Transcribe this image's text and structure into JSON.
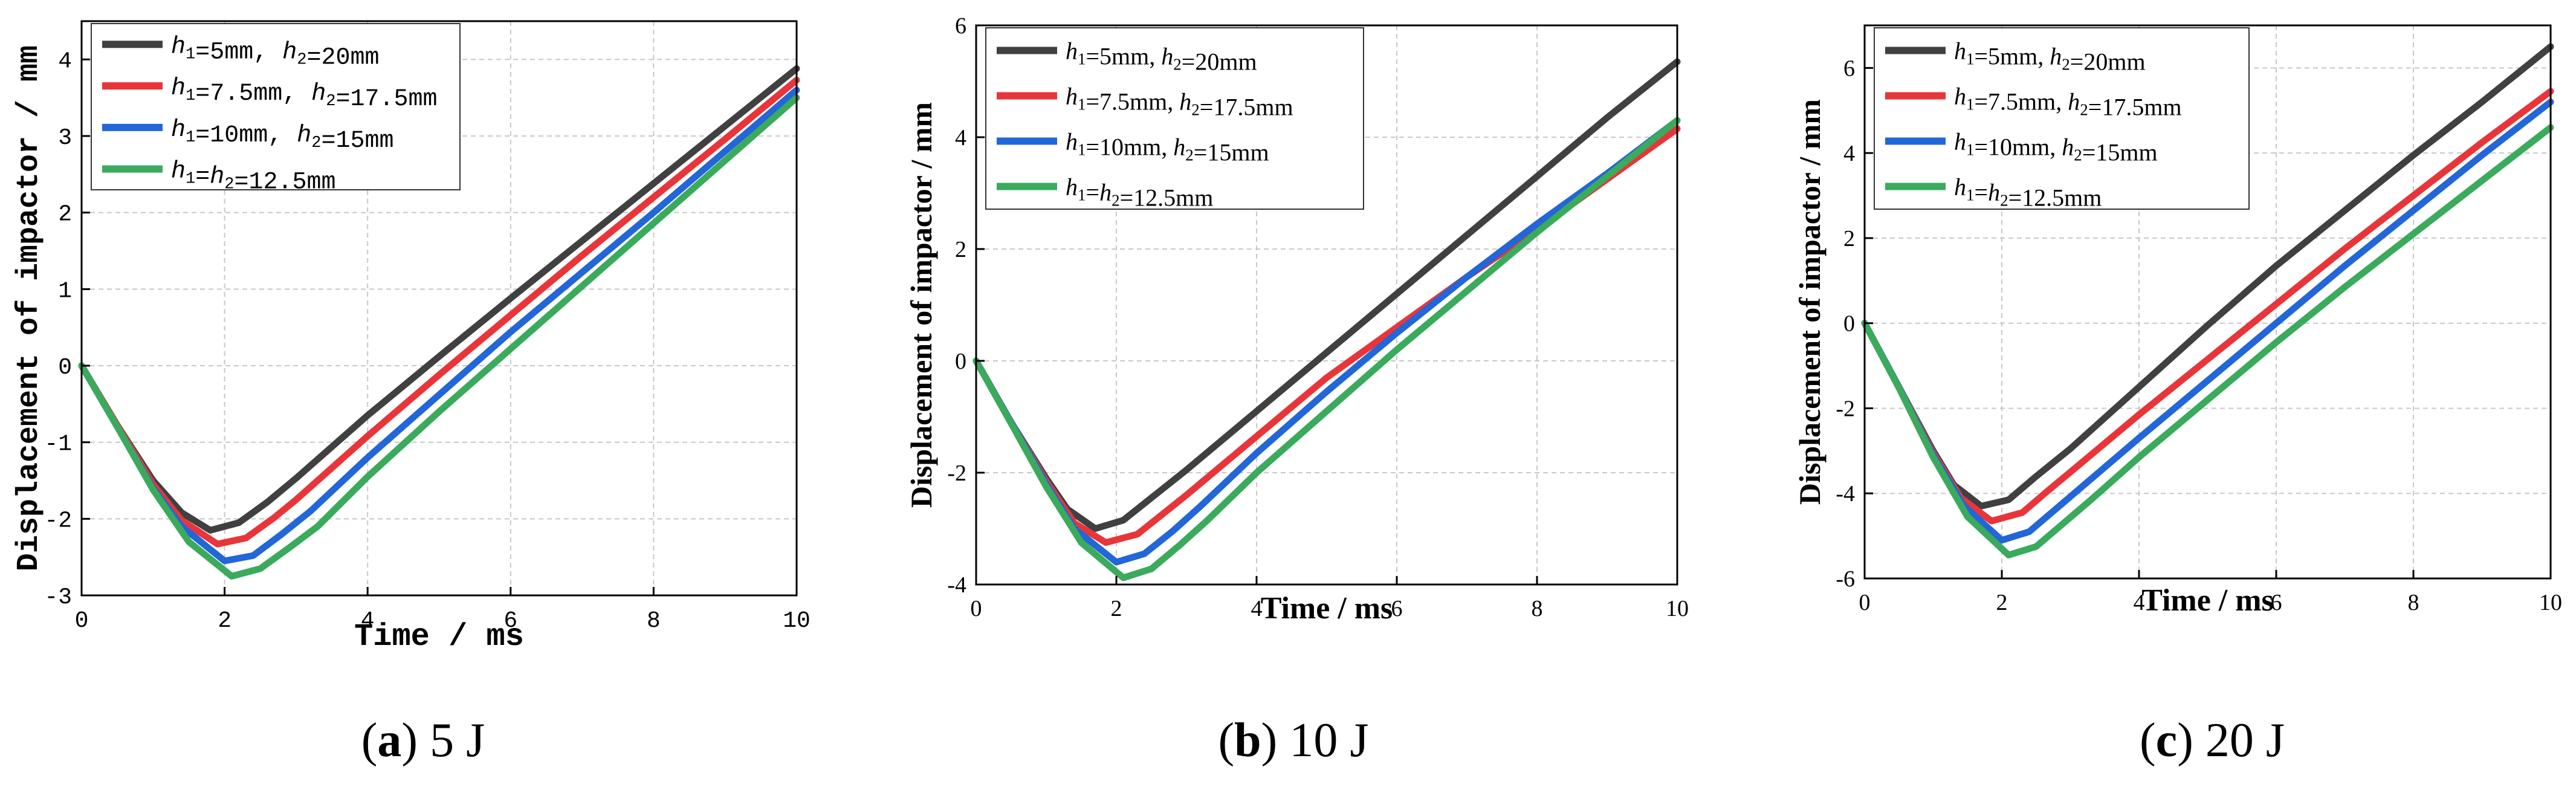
{
  "captions": [
    {
      "letter": "a",
      "text": "5 J"
    },
    {
      "letter": "b",
      "text": "10 J"
    },
    {
      "letter": "c",
      "text": "20 J"
    }
  ],
  "chart_data": [
    {
      "type": "line",
      "panel": "a",
      "xlabel": "Time / ms",
      "ylabel": "Displacement of impactor / mm",
      "xlim": [
        0,
        10
      ],
      "ylim": [
        -3,
        4.5
      ],
      "xticks": [
        0,
        2,
        4,
        6,
        8,
        10
      ],
      "yticks": [
        -3,
        -2,
        -1,
        0,
        1,
        2,
        3,
        4
      ],
      "grid": true,
      "legend_position": "top-left",
      "series": [
        {
          "name": "h1=5mm, h2=20mm",
          "color": "#404040",
          "x": [
            0,
            0.5,
            1.0,
            1.4,
            1.8,
            2.2,
            2.6,
            3,
            4,
            5,
            6,
            7,
            8,
            9,
            10
          ],
          "y": [
            0,
            -0.78,
            -1.5,
            -1.92,
            -2.15,
            -2.05,
            -1.78,
            -1.47,
            -0.65,
            0.12,
            0.88,
            1.63,
            2.38,
            3.13,
            3.88
          ]
        },
        {
          "name": "h1=7.5mm, h2=17.5mm",
          "color": "#e8353a",
          "x": [
            0,
            0.5,
            1.0,
            1.4,
            1.9,
            2.3,
            2.7,
            3,
            4,
            5,
            6,
            7,
            8,
            9,
            10
          ],
          "y": [
            0,
            -0.78,
            -1.55,
            -2.02,
            -2.33,
            -2.25,
            -1.98,
            -1.75,
            -0.92,
            -0.12,
            0.66,
            1.44,
            2.2,
            2.96,
            3.73
          ]
        },
        {
          "name": "h1=10mm, h2=15mm",
          "color": "#2266d8",
          "x": [
            0,
            0.5,
            1.0,
            1.4,
            2.0,
            2.4,
            2.8,
            3.2,
            4,
            5,
            6,
            7,
            8,
            9,
            10
          ],
          "y": [
            0,
            -0.8,
            -1.6,
            -2.1,
            -2.55,
            -2.48,
            -2.2,
            -1.9,
            -1.2,
            -0.38,
            0.44,
            1.22,
            2.0,
            2.8,
            3.6
          ]
        },
        {
          "name": "h1=h2=12.5mm",
          "color": "#3aaa5c",
          "x": [
            0,
            0.5,
            1.0,
            1.5,
            2.1,
            2.5,
            2.9,
            3.3,
            4,
            5,
            6,
            7,
            8,
            9,
            10
          ],
          "y": [
            0,
            -0.8,
            -1.62,
            -2.3,
            -2.75,
            -2.65,
            -2.38,
            -2.1,
            -1.45,
            -0.6,
            0.22,
            1.04,
            1.86,
            2.68,
            3.5
          ]
        }
      ]
    },
    {
      "type": "line",
      "panel": "b",
      "xlabel": "Time / ms",
      "ylabel": "Displacement of impactor / mm",
      "xlim": [
        0,
        10
      ],
      "ylim": [
        -4,
        6
      ],
      "xticks": [
        0,
        2,
        4,
        6,
        8,
        10
      ],
      "yticks": [
        -4,
        -2,
        0,
        2,
        4,
        6
      ],
      "grid": true,
      "legend_position": "top-left",
      "series": [
        {
          "name": "h1=5mm, h2=20mm",
          "color": "#404040",
          "x": [
            0,
            0.5,
            1.0,
            1.3,
            1.7,
            2.1,
            2.5,
            3,
            4,
            5,
            6,
            7,
            8,
            9,
            10
          ],
          "y": [
            0,
            -1.1,
            -2.1,
            -2.65,
            -3.0,
            -2.85,
            -2.45,
            -1.95,
            -0.9,
            0.15,
            1.2,
            2.25,
            3.3,
            4.35,
            5.35
          ]
        },
        {
          "name": "h1=7.5mm, h2=17.5mm",
          "color": "#e8353a",
          "x": [
            0,
            0.5,
            1.0,
            1.4,
            1.85,
            2.3,
            2.7,
            3,
            4,
            5,
            6,
            7,
            8,
            9,
            10
          ],
          "y": [
            0,
            -1.1,
            -2.15,
            -2.9,
            -3.25,
            -3.1,
            -2.7,
            -2.4,
            -1.35,
            -0.3,
            0.6,
            1.5,
            2.35,
            3.25,
            4.15
          ]
        },
        {
          "name": "h1=10mm, h2=15mm",
          "color": "#2266d8",
          "x": [
            0,
            0.5,
            1.0,
            1.4,
            2.0,
            2.4,
            2.8,
            3.2,
            4,
            5,
            6,
            7,
            8,
            9,
            10
          ],
          "y": [
            0,
            -1.1,
            -2.2,
            -3.0,
            -3.6,
            -3.45,
            -3.05,
            -2.6,
            -1.65,
            -0.55,
            0.5,
            1.5,
            2.45,
            3.35,
            4.3
          ]
        },
        {
          "name": "h1=h2=12.5mm",
          "color": "#3aaa5c",
          "x": [
            0,
            0.5,
            1.0,
            1.5,
            2.1,
            2.5,
            2.9,
            3.3,
            4,
            5,
            6,
            7,
            8,
            9,
            10
          ],
          "y": [
            0,
            -1.12,
            -2.25,
            -3.25,
            -3.88,
            -3.72,
            -3.3,
            -2.85,
            -2.0,
            -0.9,
            0.2,
            1.25,
            2.3,
            3.3,
            4.3
          ]
        }
      ]
    },
    {
      "type": "line",
      "panel": "c",
      "xlabel": "Time / ms",
      "ylabel": "Displacement of impactor / mm",
      "xlim": [
        0,
        10
      ],
      "ylim": [
        -6,
        7
      ],
      "xticks": [
        0,
        2,
        4,
        6,
        8,
        10
      ],
      "yticks": [
        -6,
        -4,
        -2,
        0,
        2,
        4,
        6
      ],
      "grid": true,
      "legend_position": "top-left",
      "series": [
        {
          "name": "h1=5mm, h2=20mm",
          "color": "#404040",
          "x": [
            0,
            0.5,
            1.0,
            1.3,
            1.7,
            2.1,
            2.5,
            3,
            4,
            5,
            6,
            7,
            8,
            9,
            10
          ],
          "y": [
            0,
            -1.5,
            -3.0,
            -3.8,
            -4.3,
            -4.15,
            -3.6,
            -2.95,
            -1.5,
            -0.05,
            1.35,
            2.65,
            3.95,
            5.2,
            6.5
          ]
        },
        {
          "name": "h1=7.5mm, h2=17.5mm",
          "color": "#e8353a",
          "x": [
            0,
            0.5,
            1.0,
            1.4,
            1.85,
            2.3,
            2.7,
            3,
            4,
            5,
            6,
            7,
            8,
            9,
            10
          ],
          "y": [
            0,
            -1.5,
            -3.05,
            -4.1,
            -4.65,
            -4.45,
            -3.9,
            -3.5,
            -2.15,
            -0.85,
            0.45,
            1.75,
            3.0,
            4.25,
            5.45
          ]
        },
        {
          "name": "h1=10mm, h2=15mm",
          "color": "#2266d8",
          "x": [
            0,
            0.5,
            1.0,
            1.45,
            2.0,
            2.4,
            2.8,
            3.2,
            4,
            5,
            6,
            7,
            8,
            9,
            10
          ],
          "y": [
            0,
            -1.5,
            -3.1,
            -4.3,
            -5.1,
            -4.9,
            -4.35,
            -3.8,
            -2.7,
            -1.35,
            0.0,
            1.35,
            2.65,
            3.95,
            5.2
          ]
        },
        {
          "name": "h1=h2=12.5mm",
          "color": "#3aaa5c",
          "x": [
            0,
            0.5,
            1.0,
            1.5,
            2.1,
            2.5,
            2.9,
            3.3,
            4,
            5,
            6,
            7,
            8,
            9,
            10
          ],
          "y": [
            0,
            -1.52,
            -3.15,
            -4.55,
            -5.45,
            -5.25,
            -4.7,
            -4.15,
            -3.15,
            -1.8,
            -0.45,
            0.85,
            2.1,
            3.35,
            4.6
          ]
        }
      ]
    }
  ]
}
